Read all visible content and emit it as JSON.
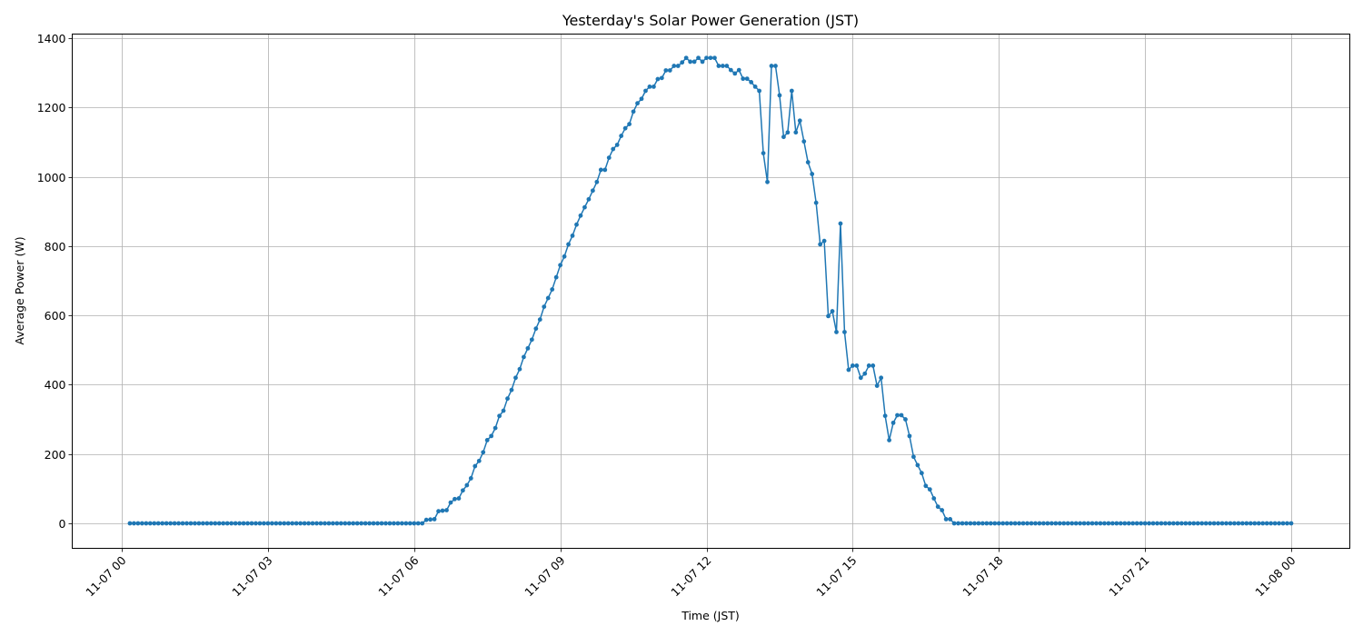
{
  "chart_data": {
    "type": "line",
    "title": "Yesterday's Solar Power Generation (JST)",
    "xlabel": "Time (JST)",
    "ylabel": "Average Power (W)",
    "x_ticks": [
      "11-07 00",
      "11-07 03",
      "11-07 06",
      "11-07 09",
      "11-07 12",
      "11-07 15",
      "11-07 18",
      "11-07 21",
      "11-08 00"
    ],
    "y_ticks": [
      0,
      200,
      400,
      600,
      800,
      1000,
      1200,
      1400
    ],
    "ylim": [
      -70,
      1415
    ],
    "xlim_hours": [
      -1.0235,
      25.195
    ],
    "grid": true,
    "legend": null,
    "series": [
      {
        "name": "Average Power (W)",
        "color": "#1f77b4",
        "marker": "circle",
        "sample_interval_minutes": 5,
        "start": "11-07 00:10",
        "end": "11-08 00:00",
        "reconstruction_note": "Values are reconstructed, not measured. The screenshot only supports reading the curve's shape at the knot points below (from gridlines and zoomed features); the 5-minute series is linearly interpolated between those knots.",
        "knots_hour_watts": [
          [
            0.1667,
            0
          ],
          [
            6.1667,
            0
          ],
          [
            6.25,
            10
          ],
          [
            6.4167,
            12
          ],
          [
            6.5,
            35
          ],
          [
            6.6667,
            38
          ],
          [
            6.75,
            60
          ],
          [
            6.8333,
            70
          ],
          [
            6.9167,
            72
          ],
          [
            7.0,
            95
          ],
          [
            7.0833,
            110
          ],
          [
            7.1667,
            130
          ],
          [
            7.25,
            165
          ],
          [
            7.3333,
            180
          ],
          [
            7.4167,
            205
          ],
          [
            7.5,
            240
          ],
          [
            7.5833,
            252
          ],
          [
            7.6667,
            275
          ],
          [
            7.75,
            310
          ],
          [
            7.8333,
            325
          ],
          [
            7.9167,
            360
          ],
          [
            8.0,
            385
          ],
          [
            8.0833,
            420
          ],
          [
            8.1667,
            445
          ],
          [
            8.25,
            480
          ],
          [
            8.3333,
            505
          ],
          [
            8.4167,
            530
          ],
          [
            8.5,
            562
          ],
          [
            8.5833,
            588
          ],
          [
            8.6667,
            625
          ],
          [
            8.75,
            650
          ],
          [
            8.8333,
            675
          ],
          [
            8.9167,
            710
          ],
          [
            9.0,
            745
          ],
          [
            9.0833,
            770
          ],
          [
            9.1667,
            805
          ],
          [
            9.25,
            830
          ],
          [
            9.3333,
            862
          ],
          [
            9.4167,
            888
          ],
          [
            9.5,
            912
          ],
          [
            9.5833,
            935
          ],
          [
            9.6667,
            960
          ],
          [
            9.75,
            985
          ],
          [
            9.8333,
            1020
          ],
          [
            9.9167,
            1020
          ],
          [
            10.0,
            1055
          ],
          [
            10.0833,
            1080
          ],
          [
            10.1667,
            1092
          ],
          [
            10.25,
            1118
          ],
          [
            10.3333,
            1140
          ],
          [
            10.4167,
            1152
          ],
          [
            10.5,
            1188
          ],
          [
            10.5833,
            1212
          ],
          [
            10.6667,
            1225
          ],
          [
            10.75,
            1248
          ],
          [
            10.8333,
            1260
          ],
          [
            10.9167,
            1260
          ],
          [
            11.0,
            1282
          ],
          [
            11.0833,
            1285
          ],
          [
            11.1667,
            1307
          ],
          [
            11.25,
            1307
          ],
          [
            11.3333,
            1320
          ],
          [
            11.4167,
            1320
          ],
          [
            11.5,
            1330
          ],
          [
            11.5833,
            1343
          ],
          [
            11.6667,
            1332
          ],
          [
            11.75,
            1332
          ],
          [
            11.8333,
            1343
          ],
          [
            11.9167,
            1332
          ],
          [
            12.0,
            1343
          ],
          [
            12.0833,
            1343
          ],
          [
            12.1667,
            1343
          ],
          [
            12.25,
            1320
          ],
          [
            12.3333,
            1320
          ],
          [
            12.4167,
            1320
          ],
          [
            12.5,
            1308
          ],
          [
            12.5833,
            1298
          ],
          [
            12.6667,
            1308
          ],
          [
            12.75,
            1283
          ],
          [
            12.8333,
            1283
          ],
          [
            12.9167,
            1273
          ],
          [
            13.0,
            1260
          ],
          [
            13.0833,
            1248
          ],
          [
            13.1667,
            1068
          ],
          [
            13.25,
            985
          ],
          [
            13.3333,
            1320
          ],
          [
            13.4167,
            1320
          ],
          [
            13.5,
            1235
          ],
          [
            13.5833,
            1115
          ],
          [
            13.6667,
            1128
          ],
          [
            13.75,
            1248
          ],
          [
            13.8333,
            1128
          ],
          [
            13.9167,
            1162
          ],
          [
            14.0,
            1102
          ],
          [
            14.0833,
            1042
          ],
          [
            14.1667,
            1008
          ],
          [
            14.25,
            925
          ],
          [
            14.3333,
            805
          ],
          [
            14.4167,
            815
          ],
          [
            14.5,
            598
          ],
          [
            14.5833,
            612
          ],
          [
            14.6667,
            552
          ],
          [
            14.75,
            865
          ],
          [
            14.8333,
            552
          ],
          [
            14.9167,
            443
          ],
          [
            15.0,
            455
          ],
          [
            15.0833,
            455
          ],
          [
            15.1667,
            420
          ],
          [
            15.25,
            432
          ],
          [
            15.3333,
            455
          ],
          [
            15.4167,
            455
          ],
          [
            15.5,
            397
          ],
          [
            15.5833,
            420
          ],
          [
            15.6667,
            310
          ],
          [
            15.75,
            240
          ],
          [
            15.8333,
            290
          ],
          [
            15.9167,
            312
          ],
          [
            16.0,
            312
          ],
          [
            16.0833,
            300
          ],
          [
            16.1667,
            252
          ],
          [
            16.25,
            192
          ],
          [
            16.3333,
            168
          ],
          [
            16.4167,
            145
          ],
          [
            16.5,
            108
          ],
          [
            16.5833,
            98
          ],
          [
            16.6667,
            72
          ],
          [
            16.75,
            48
          ],
          [
            16.8333,
            38
          ],
          [
            16.9167,
            12
          ],
          [
            17.0,
            12
          ],
          [
            17.0833,
            0
          ],
          [
            24.0,
            0
          ]
        ]
      }
    ]
  }
}
